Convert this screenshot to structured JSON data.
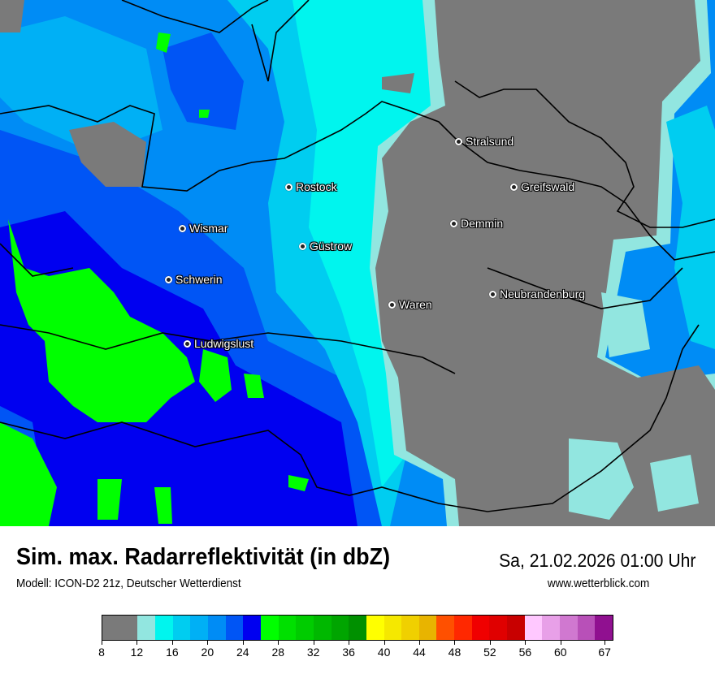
{
  "map": {
    "cities": [
      {
        "name": "Stralsund"
      },
      {
        "name": "Rostock"
      },
      {
        "name": "Greifswald"
      },
      {
        "name": "Wismar"
      },
      {
        "name": "Demmin"
      },
      {
        "name": "Güstrow"
      },
      {
        "name": "Schwerin"
      },
      {
        "name": "Neubrandenburg"
      },
      {
        "name": "Waren"
      },
      {
        "name": "Ludwigslust"
      }
    ]
  },
  "header": {
    "title": "Sim. max. Radarreflektivität (in dbZ)",
    "subtitle": "Modell: ICON-D2 21z, Deutscher Wetterdienst",
    "datetime": "Sa, 21.02.2026 01:00 Uhr",
    "website": "www.wetterblick.com"
  },
  "legend": {
    "unit": "dbZ",
    "tick_labels": [
      "8",
      "12",
      "16",
      "20",
      "24",
      "28",
      "32",
      "36",
      "40",
      "44",
      "48",
      "52",
      "56",
      "60",
      "67"
    ],
    "colors": [
      "#7a7a7a",
      "#92e6e0",
      "#00f5ee",
      "#00cdf0",
      "#00b0f5",
      "#008cf5",
      "#0055f5",
      "#0000f0",
      "#00ff00",
      "#00e000",
      "#00cc00",
      "#00b800",
      "#00a500",
      "#009000",
      "#ffff00",
      "#f5e800",
      "#f0d000",
      "#e8b400",
      "#ff5000",
      "#ff2800",
      "#f00000",
      "#e00000",
      "#c80000",
      "#ffc8ff",
      "#e8a0e8",
      "#d078d0",
      "#b850b8",
      "#901090"
    ]
  }
}
